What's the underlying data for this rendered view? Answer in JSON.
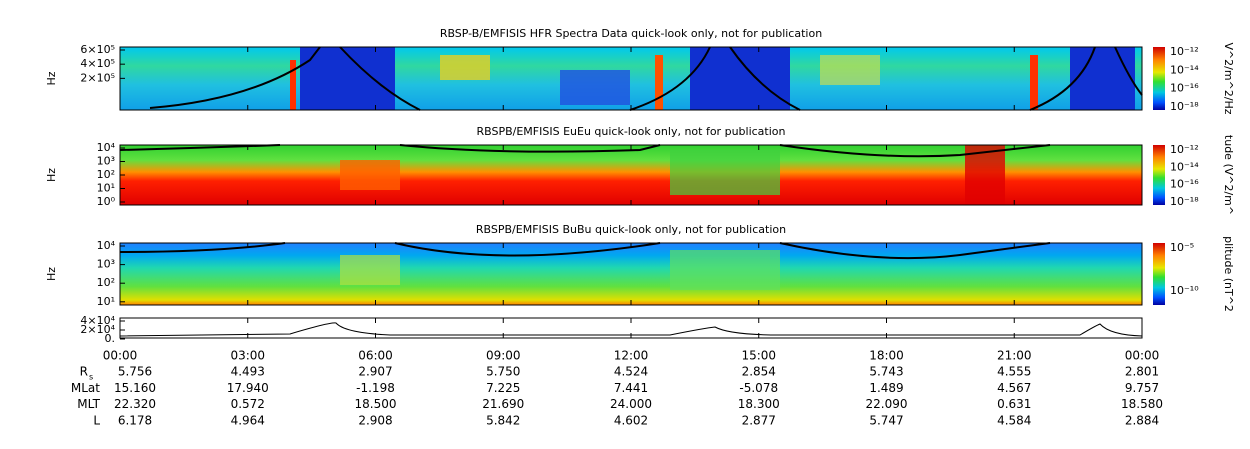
{
  "panels": [
    {
      "title": "RBSP-B/EMFISIS  HFR Spectra Data quick-look only, not for publication",
      "ylabel": "Hz",
      "yticks": [
        "6×10⁵",
        "4×10⁵",
        "2×10⁵"
      ],
      "colorbar_label": "V^2/m^2/Hz",
      "colorbar_ticks": [
        "10⁻¹²",
        "10⁻¹⁴",
        "10⁻¹⁶",
        "10⁻¹⁸"
      ]
    },
    {
      "title": "RBSPB/EMFISIS  EuEu quick-look only, not for publication",
      "ylabel": "Hz",
      "yticks": [
        "10⁴",
        "10³",
        "10²",
        "10¹",
        "10⁰"
      ],
      "colorbar_label": "tude (V^2/m^",
      "colorbar_ticks": [
        "10⁻¹²",
        "10⁻¹⁴",
        "10⁻¹⁶",
        "10⁻¹⁸"
      ]
    },
    {
      "title": "RBSPB/EMFISIS  BuBu quick-look only, not for publication",
      "ylabel": "Hz",
      "yticks": [
        "10⁴",
        "10³",
        "10²",
        "10¹"
      ],
      "colorbar_label": "plitude (nT^2",
      "colorbar_ticks": [
        "10⁻⁵",
        "10⁻¹⁰"
      ]
    },
    {
      "yticks": [
        "4×10⁴",
        "2×10⁴",
        "0."
      ]
    }
  ],
  "time_ticks": [
    "00:00",
    "03:00",
    "06:00",
    "09:00",
    "12:00",
    "15:00",
    "18:00",
    "21:00",
    "00:00"
  ],
  "rows": [
    {
      "label": "R",
      "sub": "s",
      "values": [
        "5.756",
        "4.493",
        "2.907",
        "5.750",
        "4.524",
        "2.854",
        "5.743",
        "4.555",
        "2.801"
      ]
    },
    {
      "label": "MLat",
      "values": [
        "15.160",
        "17.940",
        "-1.198",
        "7.225",
        "7.441",
        "-5.078",
        "1.489",
        "4.567",
        "9.757"
      ]
    },
    {
      "label": "MLT",
      "values": [
        "22.320",
        "0.572",
        "18.500",
        "21.690",
        "24.000",
        "18.300",
        "22.090",
        "0.631",
        "18.580"
      ]
    },
    {
      "label": "L",
      "values": [
        "6.178",
        "4.964",
        "2.908",
        "5.842",
        "4.602",
        "2.877",
        "5.747",
        "4.584",
        "2.884"
      ]
    }
  ]
}
